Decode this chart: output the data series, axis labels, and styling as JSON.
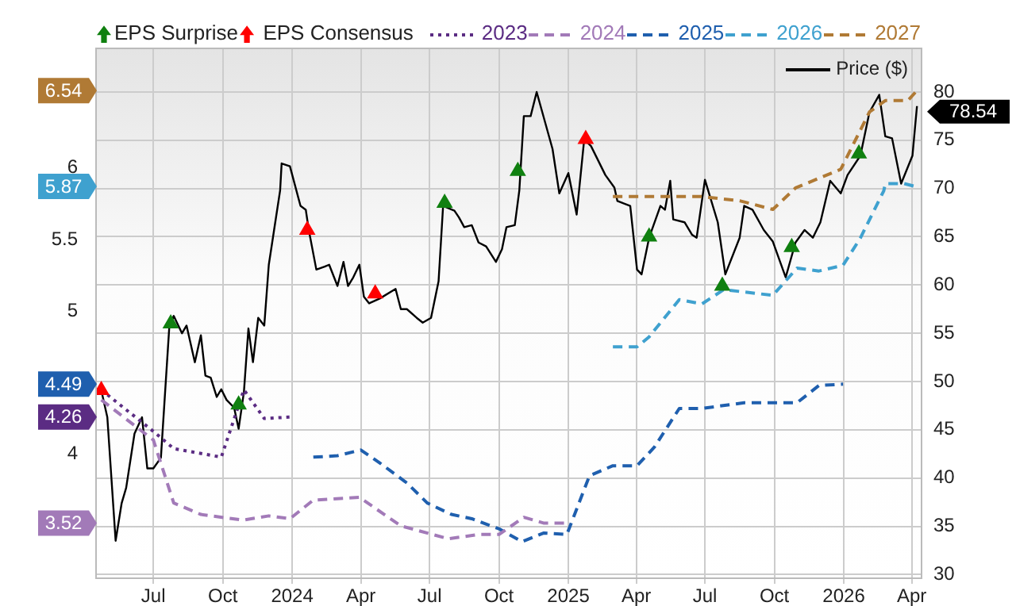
{
  "chart_data": {
    "type": "line",
    "legend": "top",
    "legend_title": "EPS Consensus",
    "annotations": [
      "4.26",
      "3.52",
      "4.49",
      "5.87",
      "6.54"
    ],
    "grid": true,
    "marker": "none",
    "ylim": [
      3.14,
      6.84
    ],
    "yticks": [
      4,
      5,
      5.5,
      6
    ],
    "y2lim": [
      29.7,
      84.6
    ],
    "y2ticks": [
      30,
      35,
      40,
      45,
      50,
      55,
      60,
      65,
      70,
      75,
      80
    ],
    "xlim": [
      "2023-04-15",
      "2026-04-13"
    ],
    "xticks": [
      {
        "value": "2023-07-01",
        "label": "Jul"
      },
      {
        "value": "2023-10-01",
        "label": "Oct"
      },
      {
        "value": "2024-01-01",
        "label": "2024"
      },
      {
        "value": "2024-04-01",
        "label": "Apr"
      },
      {
        "value": "2024-07-01",
        "label": "Jul"
      },
      {
        "value": "2024-10-01",
        "label": "Oct"
      },
      {
        "value": "2025-01-01",
        "label": "2025"
      },
      {
        "value": "2025-04-01",
        "label": "Apr"
      },
      {
        "value": "2025-07-01",
        "label": "Jul"
      },
      {
        "value": "2025-10-01",
        "label": "Oct"
      },
      {
        "value": "2026-01-01",
        "label": "2026"
      },
      {
        "value": "2026-04-01",
        "label": "Apr"
      }
    ],
    "series": [
      {
        "name": "EPS Surprise",
        "type": "scatter",
        "marker": "triangle",
        "axis": "y2",
        "color": "#108010",
        "x": [
          "2023-07-24",
          "2023-10-22",
          "2024-07-21",
          "2024-10-26",
          "2025-04-18",
          "2025-07-24",
          "2025-10-24",
          "2026-01-21"
        ],
        "values": [
          56,
          47.6,
          68.5,
          71.8,
          65,
          59.9,
          63.9,
          73.6
        ]
      },
      {
        "type": "scatter",
        "marker": "triangle",
        "axis": "y2",
        "color": "#ff0000",
        "x": [
          "2023-04-23",
          "2024-01-21",
          "2024-04-20",
          "2025-01-24"
        ],
        "values": [
          49.1,
          65.7,
          59.1,
          75.1
        ]
      },
      {
        "name": "2023",
        "line_style": "dotted",
        "color": "#5b2c83",
        "x": [
          "2023-04-23",
          "2023-07-01",
          "2023-07-28",
          "2023-09-29",
          "2023-10-29",
          "2023-11-25",
          "2023-12-29"
        ],
        "values": [
          4.45,
          4.16,
          4.04,
          3.98,
          4.45,
          4.25,
          4.26
        ]
      },
      {
        "name": "2024",
        "line_style": "dashed",
        "color": "#a27ab8",
        "x": [
          "2023-04-23",
          "2023-07-01",
          "2023-07-28",
          "2023-09-02",
          "2023-10-28",
          "2023-12-01",
          "2023-12-29",
          "2024-01-29",
          "2024-03-30",
          "2024-05-24",
          "2024-07-26",
          "2024-09-04",
          "2024-10-01",
          "2024-11-03",
          "2024-11-29",
          "2024-12-28"
        ],
        "values": [
          4.38,
          4.1,
          3.66,
          3.58,
          3.54,
          3.57,
          3.55,
          3.68,
          3.7,
          3.5,
          3.41,
          3.44,
          3.44,
          3.56,
          3.52,
          3.52
        ]
      },
      {
        "name": "2025",
        "line_style": "dashed",
        "color": "#1f5fae",
        "x": [
          "2024-01-29",
          "2024-03-01",
          "2024-04-01",
          "2024-04-26",
          "2024-06-01",
          "2024-06-28",
          "2024-07-30",
          "2024-08-26",
          "2024-10-01",
          "2024-10-28",
          "2024-11-01",
          "2024-11-29",
          "2024-12-30",
          "2025-01-29",
          "2025-03-01",
          "2025-04-02",
          "2025-04-25",
          "2025-05-28",
          "2025-06-27",
          "2025-08-22",
          "2025-09-29",
          "2025-10-31",
          "2025-11-29",
          "2025-12-31"
        ],
        "values": [
          3.98,
          3.99,
          4.03,
          3.94,
          3.8,
          3.66,
          3.58,
          3.55,
          3.48,
          3.4,
          3.39,
          3.45,
          3.44,
          3.85,
          3.92,
          3.92,
          4.05,
          4.32,
          4.32,
          4.36,
          4.36,
          4.36,
          4.48,
          4.49
        ]
      },
      {
        "name": "2026",
        "line_style": "dashed",
        "color": "#3fa1cf",
        "x": [
          "2025-03-01",
          "2025-04-02",
          "2025-04-18",
          "2025-05-28",
          "2025-06-27",
          "2025-07-26",
          "2025-09-29",
          "2025-10-31",
          "2025-11-29",
          "2025-12-31",
          "2026-01-23",
          "2026-02-23",
          "2026-02-25",
          "2026-03-22",
          "2026-04-06"
        ],
        "values": [
          4.75,
          4.75,
          4.82,
          5.08,
          5.05,
          5.15,
          5.11,
          5.3,
          5.28,
          5.32,
          5.51,
          5.84,
          5.89,
          5.89,
          5.87
        ]
      },
      {
        "name": "2027",
        "line_style": "dashed",
        "color": "#b07a35",
        "x": [
          "2025-03-01",
          "2025-06-27",
          "2025-08-16",
          "2025-09-29",
          "2025-10-29",
          "2025-12-28",
          "2026-02-04",
          "2026-02-25",
          "2026-03-27",
          "2026-04-08"
        ],
        "values": [
          5.8,
          5.8,
          5.77,
          5.71,
          5.86,
          5.99,
          6.39,
          6.47,
          6.47,
          6.54
        ]
      },
      {
        "name": "Price ($)",
        "line_style": "solid",
        "axis": "y2",
        "color": "#000000",
        "x": [
          "2023-04-23",
          "2023-05-01",
          "2023-05-12",
          "2023-05-20",
          "2023-05-26",
          "2023-06-06",
          "2023-06-16",
          "2023-06-23",
          "2023-07-01",
          "2023-07-11",
          "2023-07-22",
          "2023-07-28",
          "2023-08-08",
          "2023-08-14",
          "2023-08-25",
          "2023-09-02",
          "2023-09-08",
          "2023-09-15",
          "2023-09-23",
          "2023-09-29",
          "2023-10-06",
          "2023-10-16",
          "2023-10-22",
          "2023-10-29",
          "2023-11-04",
          "2023-11-10",
          "2023-11-17",
          "2023-11-25",
          "2023-12-01",
          "2023-12-08",
          "2023-12-16",
          "2023-12-18",
          "2023-12-29",
          "2024-01-12",
          "2024-01-19",
          "2024-01-23",
          "2024-02-02",
          "2024-02-13",
          "2024-02-19",
          "2024-03-01",
          "2024-03-09",
          "2024-03-15",
          "2024-03-22",
          "2024-03-30",
          "2024-04-05",
          "2024-04-12",
          "2024-04-26",
          "2024-05-17",
          "2024-05-24",
          "2024-06-01",
          "2024-06-14",
          "2024-06-22",
          "2024-07-03",
          "2024-07-13",
          "2024-07-19",
          "2024-08-03",
          "2024-08-09",
          "2024-08-16",
          "2024-08-26",
          "2024-09-04",
          "2024-09-14",
          "2024-09-27",
          "2024-10-05",
          "2024-10-11",
          "2024-10-22",
          "2024-10-28",
          "2024-11-03",
          "2024-11-12",
          "2024-11-20",
          "2024-12-11",
          "2024-12-20",
          "2025-01-01",
          "2025-01-12",
          "2025-01-22",
          "2025-01-31",
          "2025-02-19",
          "2025-03-03",
          "2025-03-07",
          "2025-03-24",
          "2025-04-02",
          "2025-04-08",
          "2025-04-18",
          "2025-05-03",
          "2025-05-09",
          "2025-05-16",
          "2025-05-20",
          "2025-06-04",
          "2025-06-14",
          "2025-06-20",
          "2025-07-01",
          "2025-07-18",
          "2025-07-28",
          "2025-08-16",
          "2025-08-22",
          "2025-09-02",
          "2025-09-17",
          "2025-09-29",
          "2025-10-16",
          "2025-10-29",
          "2025-11-10",
          "2025-11-21",
          "2025-12-01",
          "2025-12-14",
          "2025-12-28",
          "2026-01-06",
          "2026-01-23",
          "2026-02-04",
          "2026-02-17",
          "2026-02-25",
          "2026-03-06",
          "2026-03-18",
          "2026-04-02",
          "2026-04-08"
        ],
        "values": [
          49.1,
          46.3,
          33.5,
          37.4,
          39,
          44.6,
          46.3,
          41,
          41,
          42.1,
          55.5,
          56.8,
          55,
          55.8,
          52,
          54.8,
          50.6,
          50.4,
          48.4,
          49.2,
          48.1,
          47.3,
          45.1,
          48.9,
          55.5,
          52,
          56.6,
          55.8,
          62.1,
          65.7,
          69.8,
          72.6,
          72.3,
          68.2,
          67.8,
          65.7,
          61.6,
          61.9,
          62.1,
          59.9,
          62.4,
          59.9,
          60.8,
          62.1,
          58.8,
          58.1,
          58.6,
          59.6,
          57.5,
          57.5,
          56.6,
          56.1,
          56.6,
          60.4,
          68.2,
          67.7,
          67,
          66,
          66.2,
          64.4,
          64,
          62.4,
          63.7,
          66,
          66.2,
          69.8,
          77.5,
          77.5,
          80,
          74.1,
          69.5,
          71.6,
          67.3,
          75.1,
          74.4,
          71.4,
          70.1,
          68.7,
          68.2,
          61.6,
          61.1,
          64.9,
          68.2,
          67.8,
          70.8,
          66.8,
          66.5,
          65.2,
          64.9,
          70.9,
          66.5,
          61.1,
          64.9,
          68.2,
          67.8,
          65.7,
          64.5,
          60.8,
          64.4,
          65.7,
          64.9,
          66.5,
          70.8,
          69.5,
          71.4,
          73.4,
          77.9,
          79.7,
          75.4,
          75.2,
          70.5,
          73.4,
          78.54
        ],
        "value_labels": [
          null,
          null,
          null,
          null,
          null,
          null,
          null,
          null,
          null,
          null,
          null,
          null,
          null,
          null,
          null,
          null,
          null,
          null,
          null,
          null,
          null,
          null,
          null,
          null,
          null,
          null,
          null,
          null,
          null,
          null,
          null,
          null,
          null,
          null,
          null,
          null,
          null,
          null,
          null,
          null,
          null,
          null,
          null,
          null,
          null,
          null,
          null,
          null,
          null,
          null,
          null,
          null,
          null,
          null,
          null,
          null,
          null,
          null,
          null,
          null,
          null,
          null,
          null,
          null,
          null,
          null,
          null,
          null,
          null,
          null,
          null,
          null,
          null,
          null,
          null,
          null,
          null,
          null,
          null,
          null,
          null,
          null,
          null,
          null,
          null,
          null,
          null,
          null,
          null,
          null,
          null,
          null,
          null,
          null,
          null,
          null,
          null,
          null,
          null,
          null,
          null,
          null,
          null,
          null,
          null,
          null,
          null,
          null,
          null,
          null,
          null,
          null,
          "78.54"
        ]
      }
    ]
  }
}
